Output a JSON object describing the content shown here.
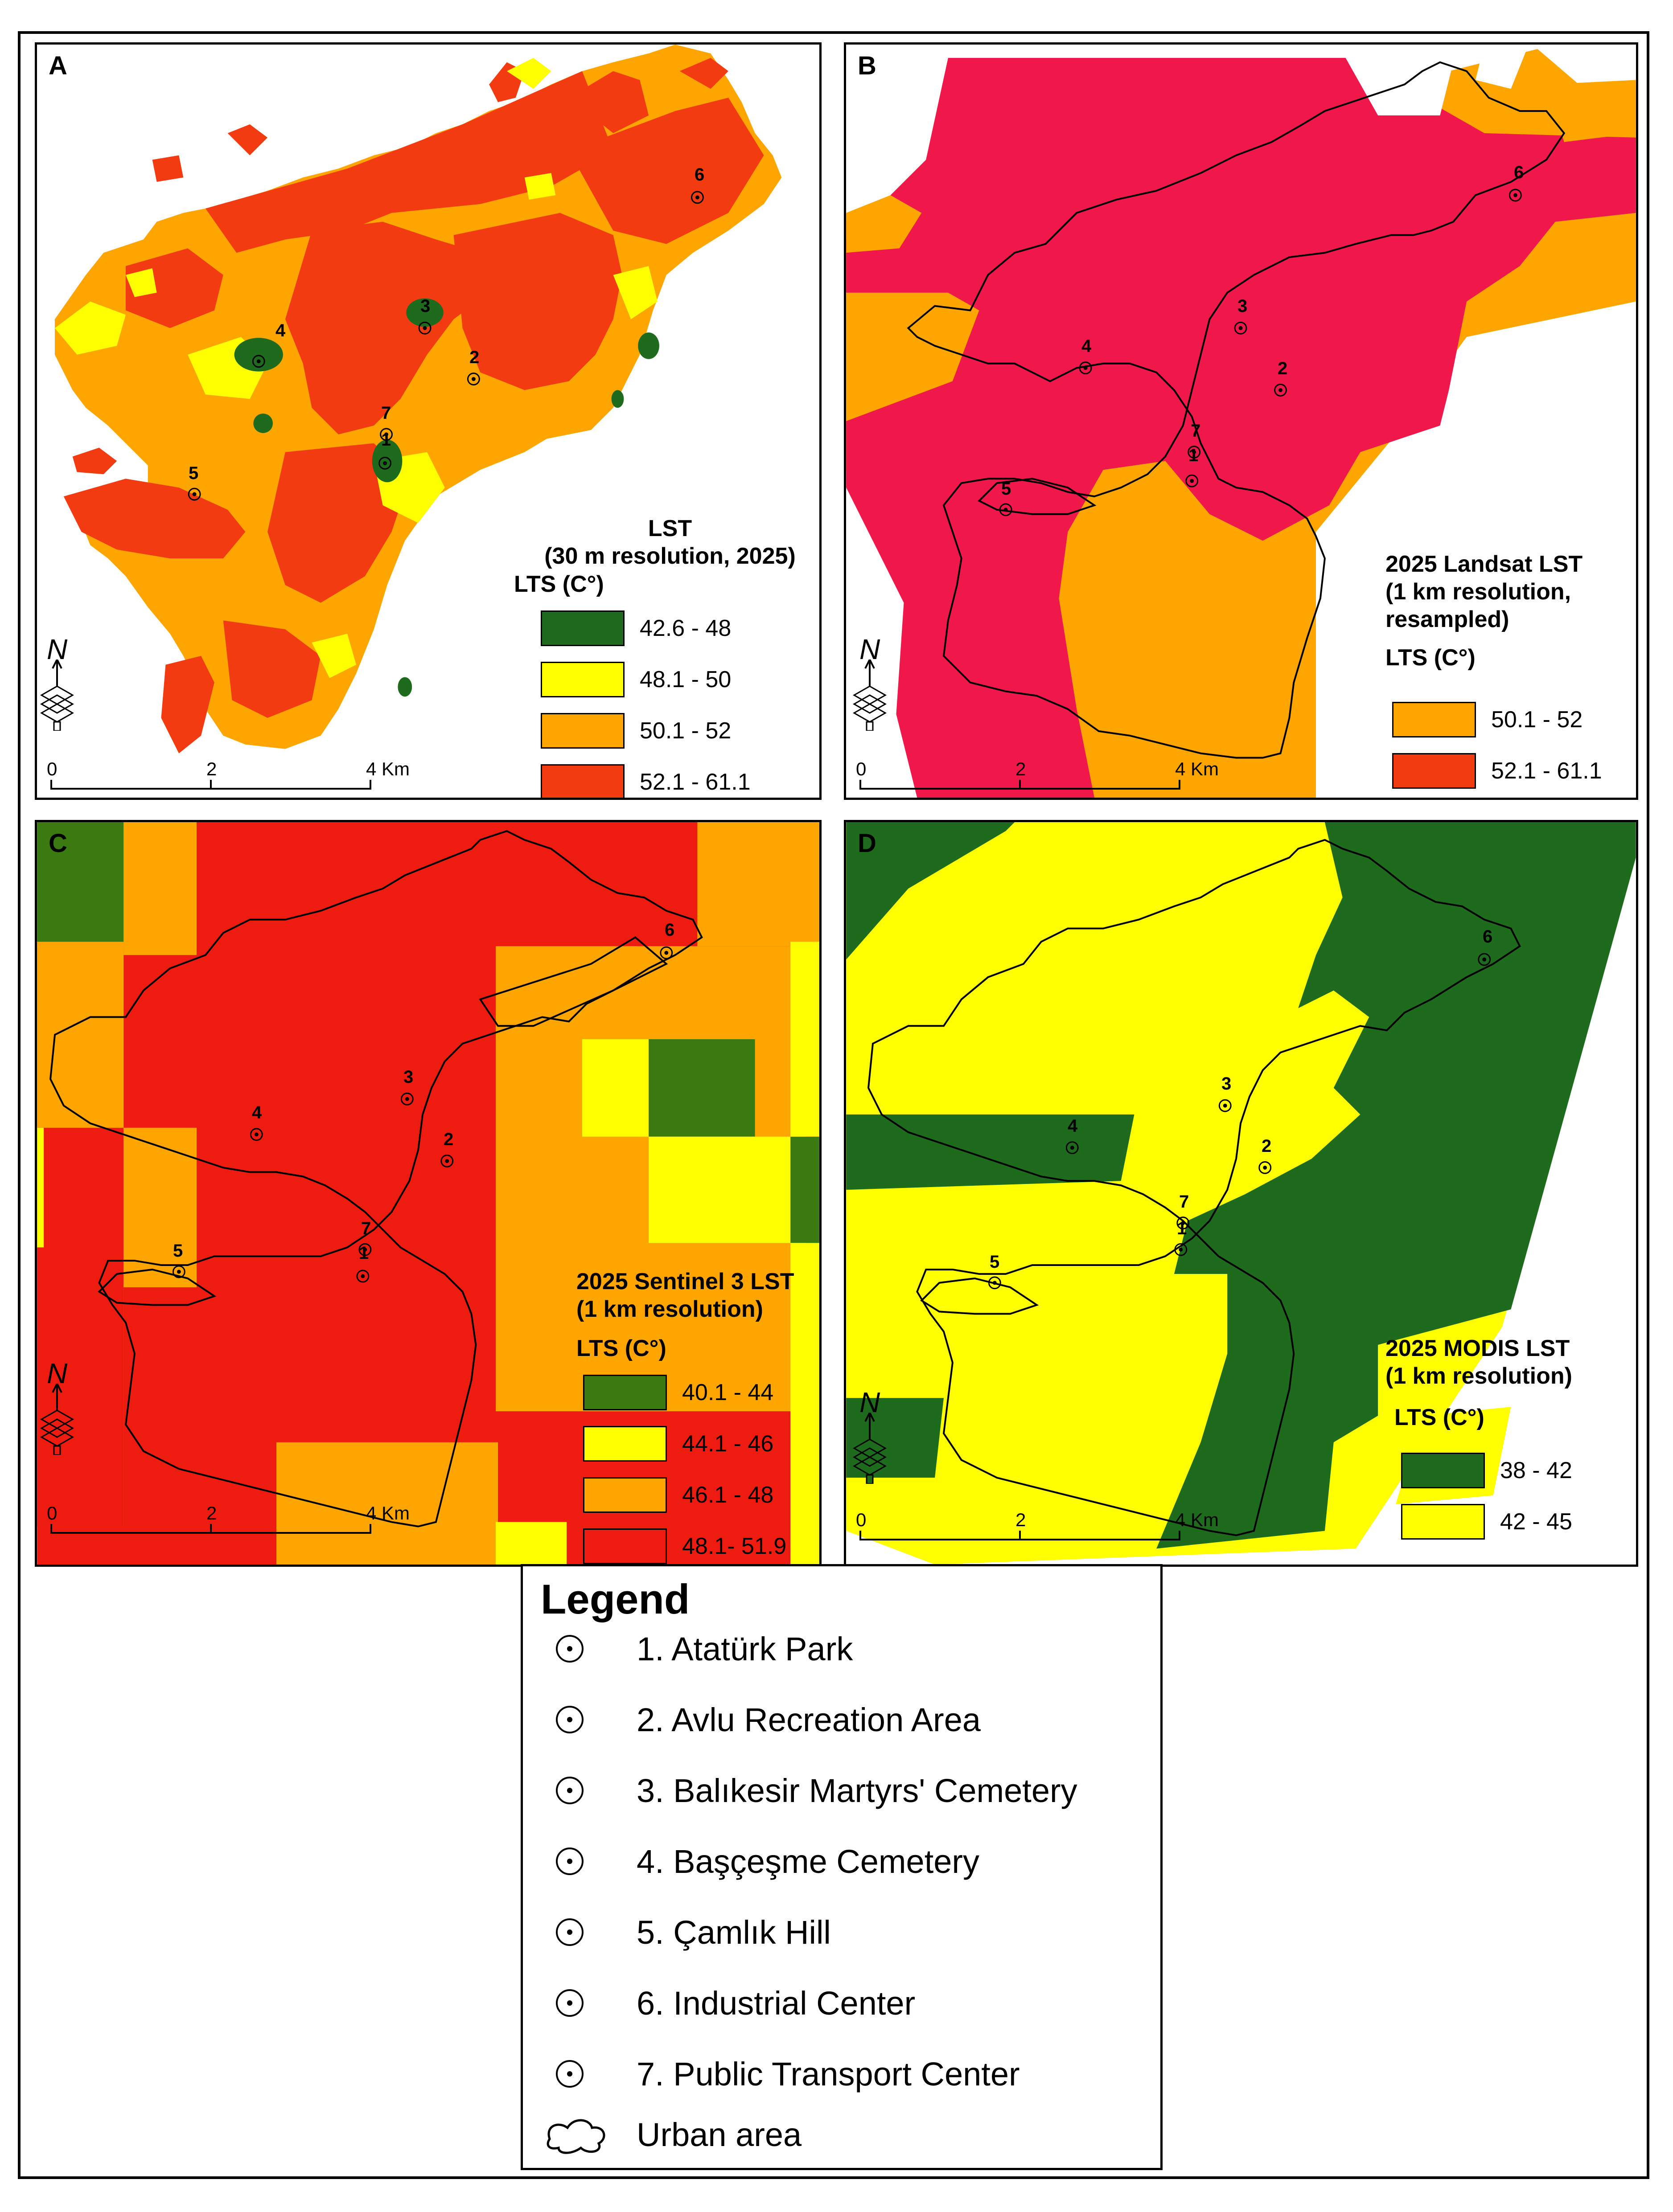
{
  "colors": {
    "dark_green": "#1e6b1e",
    "olive_green": "#3a7a10",
    "yellow": "#ffff00",
    "orange": "#ffa500",
    "red": "#f23b10",
    "crimson": "#f0184a",
    "pure_red": "#ee1b10"
  },
  "site_labels": [
    "1",
    "2",
    "3",
    "4",
    "5",
    "6",
    "7"
  ],
  "scale": {
    "t0": "0",
    "t1": "2",
    "t2": "4 Km"
  },
  "north_letter": "N",
  "panels": {
    "a": {
      "label": "A",
      "title": "LST\n(30 m resolution, 2025)",
      "unit": "LTS (C°)",
      "classes": [
        {
          "range": "42.6 - 48",
          "color": "#1e6b1e"
        },
        {
          "range": "48.1 - 50",
          "color": "#ffff00"
        },
        {
          "range": "50.1 - 52",
          "color": "#ffa500"
        },
        {
          "range": "52.1 - 61.1",
          "color": "#f23b10"
        }
      ]
    },
    "b": {
      "label": "B",
      "title": "2025 Landsat LST\n(1 km resolution,\nresampled)",
      "unit": "LTS (C°)",
      "classes": [
        {
          "range": "50.1 - 52",
          "color": "#ffa500"
        },
        {
          "range": "52.1 - 61.1",
          "color": "#f0184a"
        }
      ]
    },
    "c": {
      "label": "C",
      "title": "2025 Sentinel 3 LST\n(1 km resolution)",
      "unit": "LTS (C°)",
      "classes": [
        {
          "range": "40.1 - 44",
          "color": "#3a7a10"
        },
        {
          "range": "44.1 - 46",
          "color": "#ffff00"
        },
        {
          "range": "46.1 - 48",
          "color": "#ffa500"
        },
        {
          "range": "48.1- 51.9",
          "color": "#ee1b10"
        }
      ]
    },
    "d": {
      "label": "D",
      "title": "2025 MODIS LST\n(1 km resolution)",
      "unit": "LTS (C°)",
      "classes": [
        {
          "range": "38 - 42",
          "color": "#1e6b1e"
        },
        {
          "range": "42 - 45",
          "color": "#ffff00"
        }
      ]
    }
  },
  "legend": {
    "title": "Legend",
    "items": [
      "1. Atatürk Park",
      "2. Avlu Recreation Area",
      "3. Balıkesir Martyrs' Cemetery",
      "4. Başçeşme Cemetery",
      "5. Çamlık  Hill",
      "6. Industrial Center",
      "7. Public Transport Center"
    ],
    "urban_area": "Urban area"
  }
}
